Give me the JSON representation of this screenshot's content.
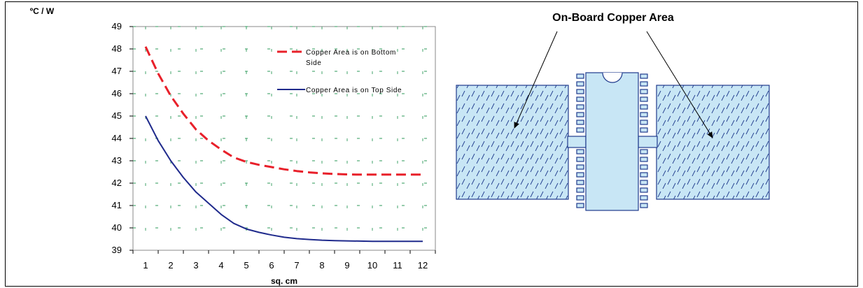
{
  "chart_data": {
    "type": "line",
    "ylabel": "ºC / W",
    "xlabel": "sq. cm",
    "xlim": [
      0.5,
      12.5
    ],
    "ylim": [
      39,
      49
    ],
    "x_ticks": [
      1,
      2,
      3,
      4,
      5,
      6,
      7,
      8,
      9,
      10,
      11,
      12
    ],
    "y_ticks": [
      39,
      40,
      41,
      42,
      43,
      44,
      45,
      46,
      47,
      48,
      49
    ],
    "grid": true,
    "legend_position": "top-right",
    "series": [
      {
        "name": "Copper Area is on Bottom Side",
        "color": "#e8202a",
        "style": "dashed",
        "x": [
          1,
          1.5,
          2,
          2.5,
          3,
          3.5,
          4,
          4.5,
          5,
          5.5,
          6,
          6.5,
          7,
          7.5,
          8,
          8.5,
          9,
          9.5,
          10,
          11,
          12
        ],
        "y": [
          48.1,
          46.9,
          45.9,
          45.1,
          44.4,
          43.9,
          43.5,
          43.15,
          42.95,
          42.82,
          42.72,
          42.62,
          42.54,
          42.48,
          42.44,
          42.41,
          42.39,
          42.38,
          42.38,
          42.38,
          42.38
        ]
      },
      {
        "name": "Copper Area is on Top Side",
        "color": "#1f2a8c",
        "style": "solid",
        "x": [
          1,
          1.5,
          2,
          2.5,
          3,
          3.5,
          4,
          4.5,
          5,
          5.5,
          6,
          6.5,
          7,
          7.5,
          8,
          8.5,
          9,
          9.5,
          10,
          11,
          12
        ],
        "y": [
          45.0,
          43.9,
          43.0,
          42.25,
          41.6,
          41.1,
          40.6,
          40.2,
          39.95,
          39.8,
          39.68,
          39.58,
          39.52,
          39.48,
          39.45,
          39.43,
          39.42,
          39.41,
          39.4,
          39.4,
          39.4
        ]
      }
    ]
  },
  "diagram": {
    "title": "On-Board Copper Area",
    "fill_color": "#c8e6f5",
    "stroke_color": "#1f3a8c"
  }
}
